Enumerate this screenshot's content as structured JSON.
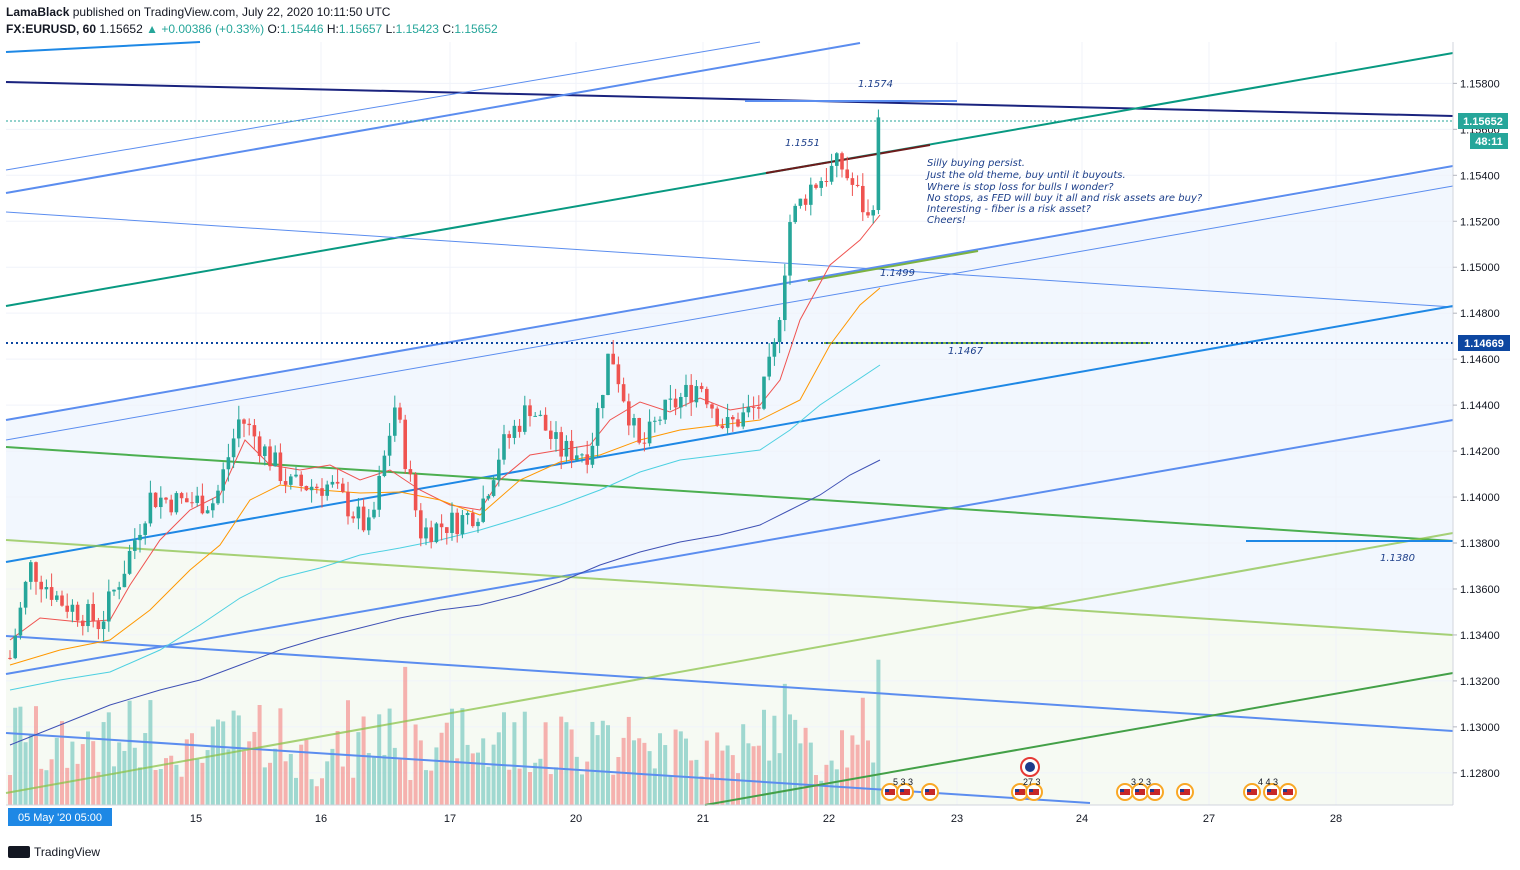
{
  "header": {
    "author": "LamaBlack",
    "published": "published on TradingView.com, July 22, 2020 10:11:50 UTC",
    "symbol": "FX:EURUSD, 60",
    "last": "1.15652",
    "change": "+0.00386 (+0.33%)",
    "o_label": "O:",
    "o": "1.15446",
    "h_label": "H:",
    "h": "1.15657",
    "l_label": "L:",
    "l": "1.15423",
    "c_label": "C:",
    "c": "1.15652"
  },
  "footer": {
    "brand": "TradingView"
  },
  "annotations": {
    "level_1574": "1.1574",
    "level_1551": "1.1551",
    "level_1499": "1.1499",
    "level_1467": "1.1467",
    "level_1380": "1.1380",
    "comment": [
      "Silly buying persist.",
      "Just the old theme, buy until it buyouts.",
      "Where is stop loss for bulls I wonder?",
      "No stops, as FED will buy it all and risk assets are buy?",
      "Interesting  - fiber is a risk asset?",
      "Cheers!"
    ]
  },
  "price_badges": {
    "last": "1.15652",
    "countdown": "48:11",
    "level": "1.14669"
  },
  "colors": {
    "up": "#26a69a",
    "down": "#ef5350",
    "trend_blue": "#2962ff",
    "light_blue": "#5b8def",
    "green": "#4caf50",
    "teal": "#089981"
  },
  "events": {
    "e1": "5 3 3",
    "e2": "27 3",
    "e3": "3 2 3",
    "e4": "4 4 3"
  },
  "chart_data": {
    "type": "candlestick",
    "symbol": "FX:EURUSD",
    "interval": "60",
    "y_axis": {
      "range": [
        1.1266,
        1.1598
      ],
      "ticks": [
        "1.15800",
        "1.15600",
        "1.15400",
        "1.15200",
        "1.15000",
        "1.14800",
        "1.14600",
        "1.14400",
        "1.14200",
        "1.14000",
        "1.13800",
        "1.13600",
        "1.13400",
        "1.13200",
        "1.13000",
        "1.12800"
      ]
    },
    "x_axis": {
      "start_label": "05 May '20  05:00",
      "ticks": [
        "15",
        "16",
        "17",
        "20",
        "21",
        "22",
        "23",
        "24",
        "27",
        "28"
      ]
    },
    "daily_closes": [
      {
        "x": "14",
        "close": 1.1375
      },
      {
        "x": "15",
        "close": 1.1405
      },
      {
        "x": "16",
        "close": 1.1385
      },
      {
        "x": "17",
        "close": 1.1395
      },
      {
        "x": "20",
        "close": 1.144
      },
      {
        "x": "21",
        "close": 1.1435
      },
      {
        "x": "22",
        "close": 1.15652
      }
    ],
    "levels": [
      1.1574,
      1.1551,
      1.1499,
      1.1467,
      1.138
    ]
  }
}
